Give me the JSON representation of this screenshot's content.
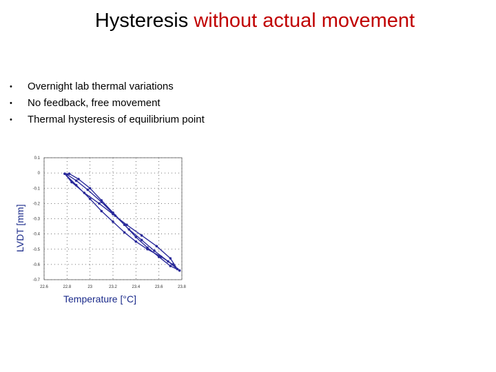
{
  "title": {
    "main": "Hysteresis ",
    "accent": "without actual movement",
    "accent_color": "#c00000"
  },
  "bullets": [
    "Overnight lab thermal variations",
    "No feedback, free movement",
    "Thermal hysteresis of equilibrium point"
  ],
  "chart_data": {
    "type": "line",
    "title": "",
    "xlabel": "Temperature [°C]",
    "ylabel": "LVDT [mm]",
    "xlim": [
      22.6,
      23.8
    ],
    "ylim": [
      -0.7,
      0.1
    ],
    "xticks": [
      "22.6",
      "22.8",
      "23",
      "23.2",
      "23.4",
      "23.6",
      "23.8"
    ],
    "yticks": [
      "0.1",
      "0",
      "-0.1",
      "-0.2",
      "-0.3",
      "-0.4",
      "-0.5",
      "-0.6",
      "-0.7"
    ],
    "grid": "dotted",
    "series_color": "#2a2a9a",
    "series": [
      {
        "x": [
          22.78,
          22.88,
          23.0,
          23.1,
          23.2,
          23.3,
          23.4,
          23.5,
          23.62,
          23.72,
          23.78,
          23.7,
          23.6,
          23.5,
          23.4,
          23.3,
          23.2,
          23.1,
          23.0,
          22.9,
          22.82,
          22.78,
          22.84,
          22.95,
          23.08,
          23.2,
          23.32,
          23.45,
          23.58,
          23.7,
          23.76,
          23.68,
          23.56,
          23.45,
          23.34,
          23.22,
          23.1,
          22.98,
          22.88,
          22.8
        ],
        "y": [
          -0.005,
          -0.08,
          -0.17,
          -0.25,
          -0.32,
          -0.39,
          -0.45,
          -0.5,
          -0.55,
          -0.6,
          -0.64,
          -0.61,
          -0.55,
          -0.49,
          -0.42,
          -0.34,
          -0.26,
          -0.18,
          -0.1,
          -0.04,
          -0.005,
          -0.005,
          -0.06,
          -0.13,
          -0.2,
          -0.27,
          -0.34,
          -0.41,
          -0.48,
          -0.56,
          -0.63,
          -0.58,
          -0.51,
          -0.44,
          -0.37,
          -0.28,
          -0.19,
          -0.11,
          -0.05,
          -0.01
        ]
      }
    ]
  }
}
